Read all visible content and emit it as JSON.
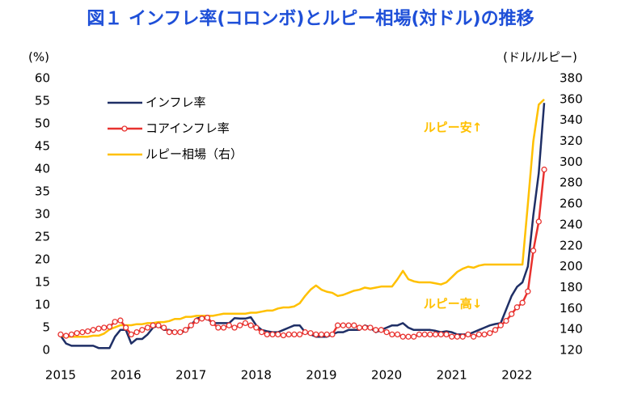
{
  "chart_data": {
    "type": "line",
    "title": "図１ インフレ率(コロンボ)とルピー相場(対ドル)の推移",
    "y_label": "(%)",
    "y2_label": "(ドル/ルピー)",
    "annotations": [
      "ルピー安↑",
      "ルピー高↓"
    ],
    "categories": [
      "2015",
      null,
      null,
      null,
      null,
      null,
      null,
      null,
      null,
      null,
      null,
      null,
      "2016",
      null,
      null,
      null,
      null,
      null,
      null,
      null,
      null,
      null,
      null,
      null,
      "2017",
      null,
      null,
      null,
      null,
      null,
      null,
      null,
      null,
      null,
      null,
      null,
      "2018",
      null,
      null,
      null,
      null,
      null,
      null,
      null,
      null,
      null,
      null,
      null,
      "2019",
      null,
      null,
      null,
      null,
      null,
      null,
      null,
      null,
      null,
      null,
      null,
      "2020",
      null,
      null,
      null,
      null,
      null,
      null,
      null,
      null,
      null,
      null,
      null,
      "2021",
      null,
      null,
      null,
      null,
      null,
      null,
      null,
      null,
      null,
      null,
      null,
      "2022",
      null,
      null,
      null,
      null,
      null
    ],
    "series": [
      {
        "name": "インフレ率",
        "color": "#1f2f66",
        "values": [
          3.2,
          1.5,
          1.0,
          1.0,
          1.0,
          1.0,
          1.0,
          0.5,
          0.5,
          0.5,
          3.0,
          4.5,
          4.5,
          1.5,
          2.5,
          2.5,
          3.5,
          5.0,
          5.5,
          4.5,
          4.5,
          4.0,
          4.0,
          4.2,
          5.5,
          7.0,
          7.3,
          7.0,
          6.0,
          6.0,
          6.0,
          6.0,
          7.1,
          7.0,
          7.0,
          7.3,
          5.5,
          4.5,
          4.2,
          4.0,
          4.0,
          4.5,
          5.0,
          5.5,
          5.5,
          4.0,
          3.5,
          3.0,
          3.0,
          3.0,
          3.5,
          4.0,
          4.0,
          4.5,
          4.5,
          4.5,
          5.5,
          5.0,
          4.0,
          4.5,
          5.0,
          5.5,
          5.5,
          6.0,
          5.0,
          4.5,
          4.5,
          4.5,
          4.5,
          4.3,
          4.0,
          4.2,
          4.0,
          3.5,
          3.5,
          3.5,
          4.0,
          4.5,
          5.0,
          5.5,
          5.8,
          6.0,
          9.0,
          12.0,
          14.0,
          15.0,
          18.5,
          29.8,
          39.1,
          54.6
        ]
      },
      {
        "name": "コアインフレ率",
        "color": "#e8322f",
        "markers": true,
        "values": [
          3.5,
          3.2,
          3.5,
          3.8,
          4.0,
          4.2,
          4.5,
          4.8,
          5.0,
          5.2,
          6.3,
          6.6,
          5.0,
          3.5,
          4.0,
          4.5,
          5.0,
          5.5,
          5.5,
          5.0,
          4.0,
          4.0,
          4.0,
          4.5,
          5.5,
          6.5,
          7.0,
          7.2,
          6.0,
          5.0,
          5.0,
          5.5,
          5.0,
          5.5,
          6.0,
          5.5,
          5.0,
          4.0,
          3.5,
          3.5,
          3.5,
          3.3,
          3.5,
          3.5,
          3.5,
          4.0,
          3.8,
          3.5,
          3.5,
          3.5,
          3.5,
          5.5,
          5.5,
          5.5,
          5.5,
          5.0,
          5.0,
          5.0,
          4.5,
          4.5,
          4.0,
          3.5,
          3.5,
          3.0,
          3.0,
          3.0,
          3.5,
          3.5,
          3.5,
          3.5,
          3.5,
          3.5,
          3.0,
          3.0,
          3.0,
          3.5,
          3.0,
          3.5,
          3.5,
          3.8,
          4.5,
          5.5,
          6.5,
          8.0,
          9.5,
          10.5,
          13.0,
          22.0,
          28.4,
          39.9
        ]
      },
      {
        "name": "ルピー相場（右）",
        "color": "#ffc000",
        "axis": "y2",
        "values": [
          133,
          133,
          133,
          133,
          133,
          133,
          134,
          134,
          136,
          140,
          142,
          144,
          144,
          144,
          145,
          145,
          146,
          146,
          147,
          147,
          148,
          150,
          150,
          152,
          152,
          153,
          153,
          153,
          153,
          154,
          155,
          155,
          155,
          155,
          155,
          156,
          156,
          157,
          158,
          158,
          160,
          161,
          161,
          162,
          165,
          172,
          178,
          182,
          178,
          176,
          175,
          172,
          173,
          175,
          177,
          178,
          180,
          179,
          180,
          181,
          181,
          181,
          188,
          196,
          188,
          186,
          185,
          185,
          185,
          184,
          183,
          185,
          190,
          195,
          198,
          200,
          199,
          201,
          202,
          202,
          202,
          202,
          202,
          202,
          202,
          202,
          260,
          320,
          355,
          360
        ]
      }
    ],
    "ylim": [
      0,
      60
    ],
    "yticks": [
      0,
      5,
      10,
      15,
      20,
      25,
      30,
      35,
      40,
      45,
      50,
      55,
      60
    ],
    "y2lim": [
      120,
      380
    ],
    "y2ticks": [
      120,
      140,
      160,
      180,
      200,
      220,
      240,
      260,
      280,
      300,
      320,
      340,
      360,
      380
    ],
    "grid": false
  }
}
